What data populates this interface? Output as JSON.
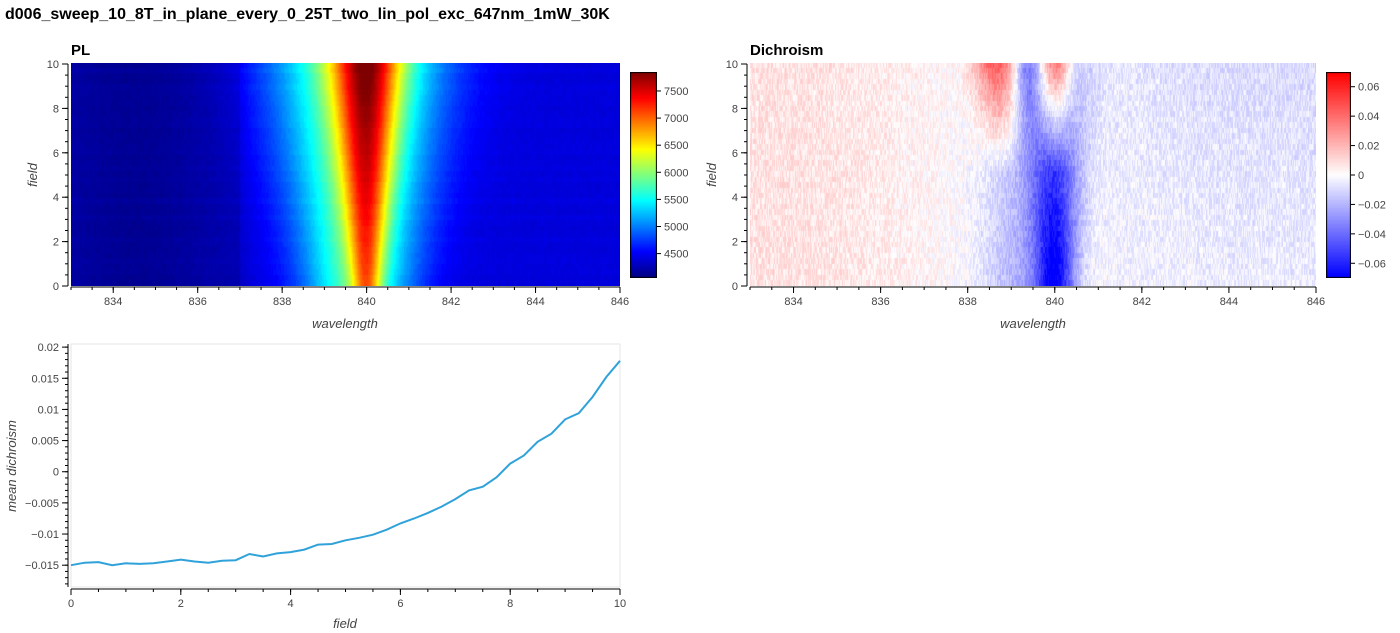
{
  "title": "d006_sweep_10_8T_in_plane_every_0_25T_two_lin_pol_exc_647nm_1mW_30K",
  "chart_data": [
    {
      "type": "heatmap",
      "title": "PL",
      "xlabel": "wavelength",
      "ylabel": "field",
      "xlim": [
        833,
        846
      ],
      "ylim": [
        0,
        10
      ],
      "x_ticks": [
        "834",
        "836",
        "838",
        "840",
        "842",
        "844",
        "846"
      ],
      "y_ticks": [
        "0",
        "2",
        "4",
        "6",
        "8",
        "10"
      ],
      "colormap": "jet",
      "color_range": [
        4050,
        7850
      ],
      "colorbar_ticks": [
        "4500",
        "5000",
        "5500",
        "6000",
        "6500",
        "7000",
        "7500"
      ],
      "model": {
        "background": 4250,
        "broad_peak_center": 839.8,
        "broad_peak_amplitude": 1550,
        "broad_peak_width": 1.5,
        "narrow_peak_center": 840.0,
        "narrow_peak_amplitude": 1700,
        "narrow_peak_width_at_field_0": 0.35,
        "narrow_peak_width_at_field_10": 0.8,
        "step_edge": 837.0
      }
    },
    {
      "type": "heatmap",
      "title": "Dichroism",
      "xlabel": "wavelength",
      "ylabel": "field",
      "xlim": [
        833,
        846
      ],
      "ylim": [
        0,
        10
      ],
      "x_ticks": [
        "834",
        "836",
        "838",
        "840",
        "842",
        "844",
        "846"
      ],
      "y_ticks": [
        "0",
        "2",
        "4",
        "6",
        "8",
        "10"
      ],
      "colormap": "bwr",
      "color_range": [
        -0.07,
        0.07
      ],
      "colorbar_ticks": [
        "−0.06",
        "−0.04",
        "−0.02",
        "0",
        "0.02",
        "0.04",
        "0.06"
      ],
      "features": {
        "blue_valley_center": 840.0,
        "blue_valley_min": -0.065,
        "red_lobes_centers": [
          838.7,
          840.0
        ],
        "red_lobes_max": 0.07,
        "red_lobes_start_field": 6.0
      }
    },
    {
      "type": "line",
      "title": "",
      "xlabel": "field",
      "ylabel": "mean dichroism",
      "xlim": [
        0,
        10
      ],
      "ylim": [
        -0.0185,
        0.0205
      ],
      "x_ticks": [
        "0",
        "2",
        "4",
        "6",
        "8",
        "10"
      ],
      "y_ticks": [
        "−0.015",
        "−0.01",
        "−0.005",
        "0",
        "0.005",
        "0.01",
        "0.015",
        "0.02"
      ],
      "color": "#30a2da",
      "x": [
        0,
        0.25,
        0.5,
        0.75,
        1,
        1.25,
        1.5,
        1.75,
        2,
        2.25,
        2.5,
        2.75,
        3,
        3.25,
        3.5,
        3.75,
        4,
        4.25,
        4.5,
        4.75,
        5,
        5.25,
        5.5,
        5.75,
        6,
        6.25,
        6.5,
        6.75,
        7,
        7.25,
        7.5,
        7.75,
        8,
        8.25,
        8.5,
        8.75,
        9,
        9.25,
        9.5,
        9.75,
        10
      ],
      "y": [
        -0.015,
        -0.0146,
        -0.0145,
        -0.015,
        -0.0147,
        -0.0148,
        -0.0147,
        -0.0144,
        -0.0141,
        -0.0144,
        -0.0146,
        -0.0143,
        -0.0142,
        -0.0132,
        -0.0136,
        -0.0131,
        -0.0129,
        -0.0125,
        -0.0117,
        -0.0116,
        -0.011,
        -0.0106,
        -0.0101,
        -0.0093,
        -0.0083,
        -0.0075,
        -0.0066,
        -0.0056,
        -0.0044,
        -0.003,
        -0.0024,
        -0.0009,
        0.0013,
        0.0026,
        0.0048,
        0.0061,
        0.0084,
        0.0094,
        0.012,
        0.0152,
        0.0178
      ]
    }
  ]
}
